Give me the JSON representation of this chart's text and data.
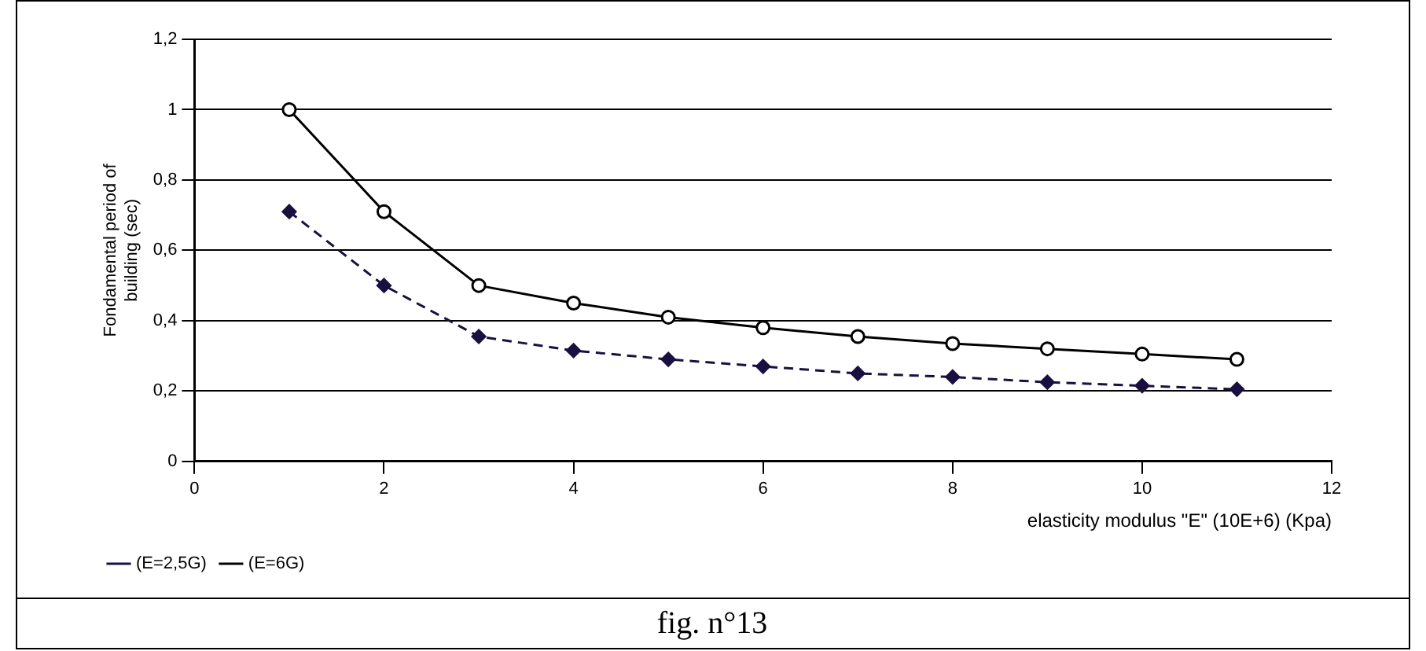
{
  "chart_data": {
    "type": "line",
    "xlabel": "elasticity modulus \"E\" (10E+6) (Kpa)",
    "ylabel": "Fondamental period of building (sec)",
    "x": [
      1,
      2,
      3,
      4,
      5,
      6,
      7,
      8,
      9,
      10,
      11
    ],
    "series": [
      {
        "name": "(E=2,5G)",
        "color": "#1a1040",
        "marker": "diamond",
        "line_style": "dashed",
        "values": [
          0.71,
          0.5,
          0.355,
          0.315,
          0.29,
          0.27,
          0.25,
          0.24,
          0.225,
          0.215,
          0.205
        ]
      },
      {
        "name": "(E=6G)",
        "color": "#000000",
        "marker": "circle",
        "line_style": "solid",
        "values": [
          1,
          0.71,
          0.5,
          0.45,
          0.41,
          0.38,
          0.355,
          0.335,
          0.32,
          0.305,
          0.29
        ]
      }
    ],
    "xlim": [
      0,
      12
    ],
    "xticks": [
      0,
      2,
      4,
      6,
      8,
      10,
      12
    ],
    "ylim": [
      0,
      1.2
    ],
    "yticks": [
      0,
      {
        "value": 0.2,
        "label": "0,2"
      },
      {
        "value": 0.4,
        "label": "0,4"
      },
      {
        "value": 0.6,
        "label": "0,6"
      },
      {
        "value": 0.8,
        "label": "0,8"
      },
      1,
      {
        "value": 1.2,
        "label": "1,2"
      }
    ],
    "grid": "y",
    "legend": "bottom left",
    "annotations": [
      "fig. n°13"
    ]
  }
}
